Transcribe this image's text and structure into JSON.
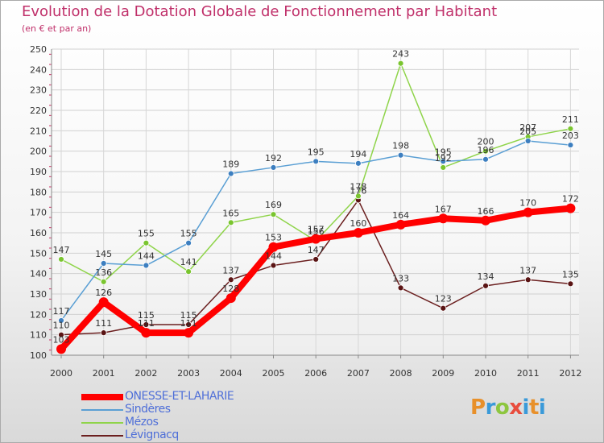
{
  "title": "Evolution de la Dotation Globale de Fonctionnement par Habitant",
  "subtitle": "(en € et par an)",
  "logo_text": "Proxiti",
  "chart_data": {
    "type": "line",
    "title": "Evolution de la Dotation Globale de Fonctionnement par Habitant",
    "subtitle": "(en € et par an)",
    "xlabel": "",
    "ylabel": "",
    "x": [
      "2000",
      "2001",
      "2002",
      "2003",
      "2004",
      "2005",
      "2006",
      "2007",
      "2008",
      "2009",
      "2010",
      "2011",
      "2012"
    ],
    "ylim": [
      100,
      250
    ],
    "yticks": [
      100,
      110,
      120,
      130,
      140,
      150,
      160,
      170,
      180,
      190,
      200,
      210,
      220,
      230,
      240,
      250
    ],
    "grid": true,
    "legend_position": "bottom-left",
    "series": [
      {
        "name": "ONESSE-ET-LAHARIE",
        "color": "#ff0000",
        "values": [
          103,
          126,
          111,
          111,
          128,
          153,
          157,
          160,
          164,
          167,
          166,
          170,
          172
        ]
      },
      {
        "name": "Sindères",
        "color": "#5a9fd4",
        "values": [
          117,
          145,
          144,
          155,
          189,
          192,
          195,
          194,
          198,
          195,
          196,
          205,
          203
        ]
      },
      {
        "name": "Mézos",
        "color": "#8fd44a",
        "values": [
          147,
          136,
          155,
          141,
          165,
          169,
          156,
          178,
          243,
          192,
          200,
          207,
          211
        ]
      },
      {
        "name": "Lévignacq",
        "color": "#6b1f1f",
        "values": [
          110,
          111,
          115,
          115,
          137,
          144,
          147,
          176,
          133,
          123,
          134,
          137,
          135
        ]
      }
    ]
  }
}
